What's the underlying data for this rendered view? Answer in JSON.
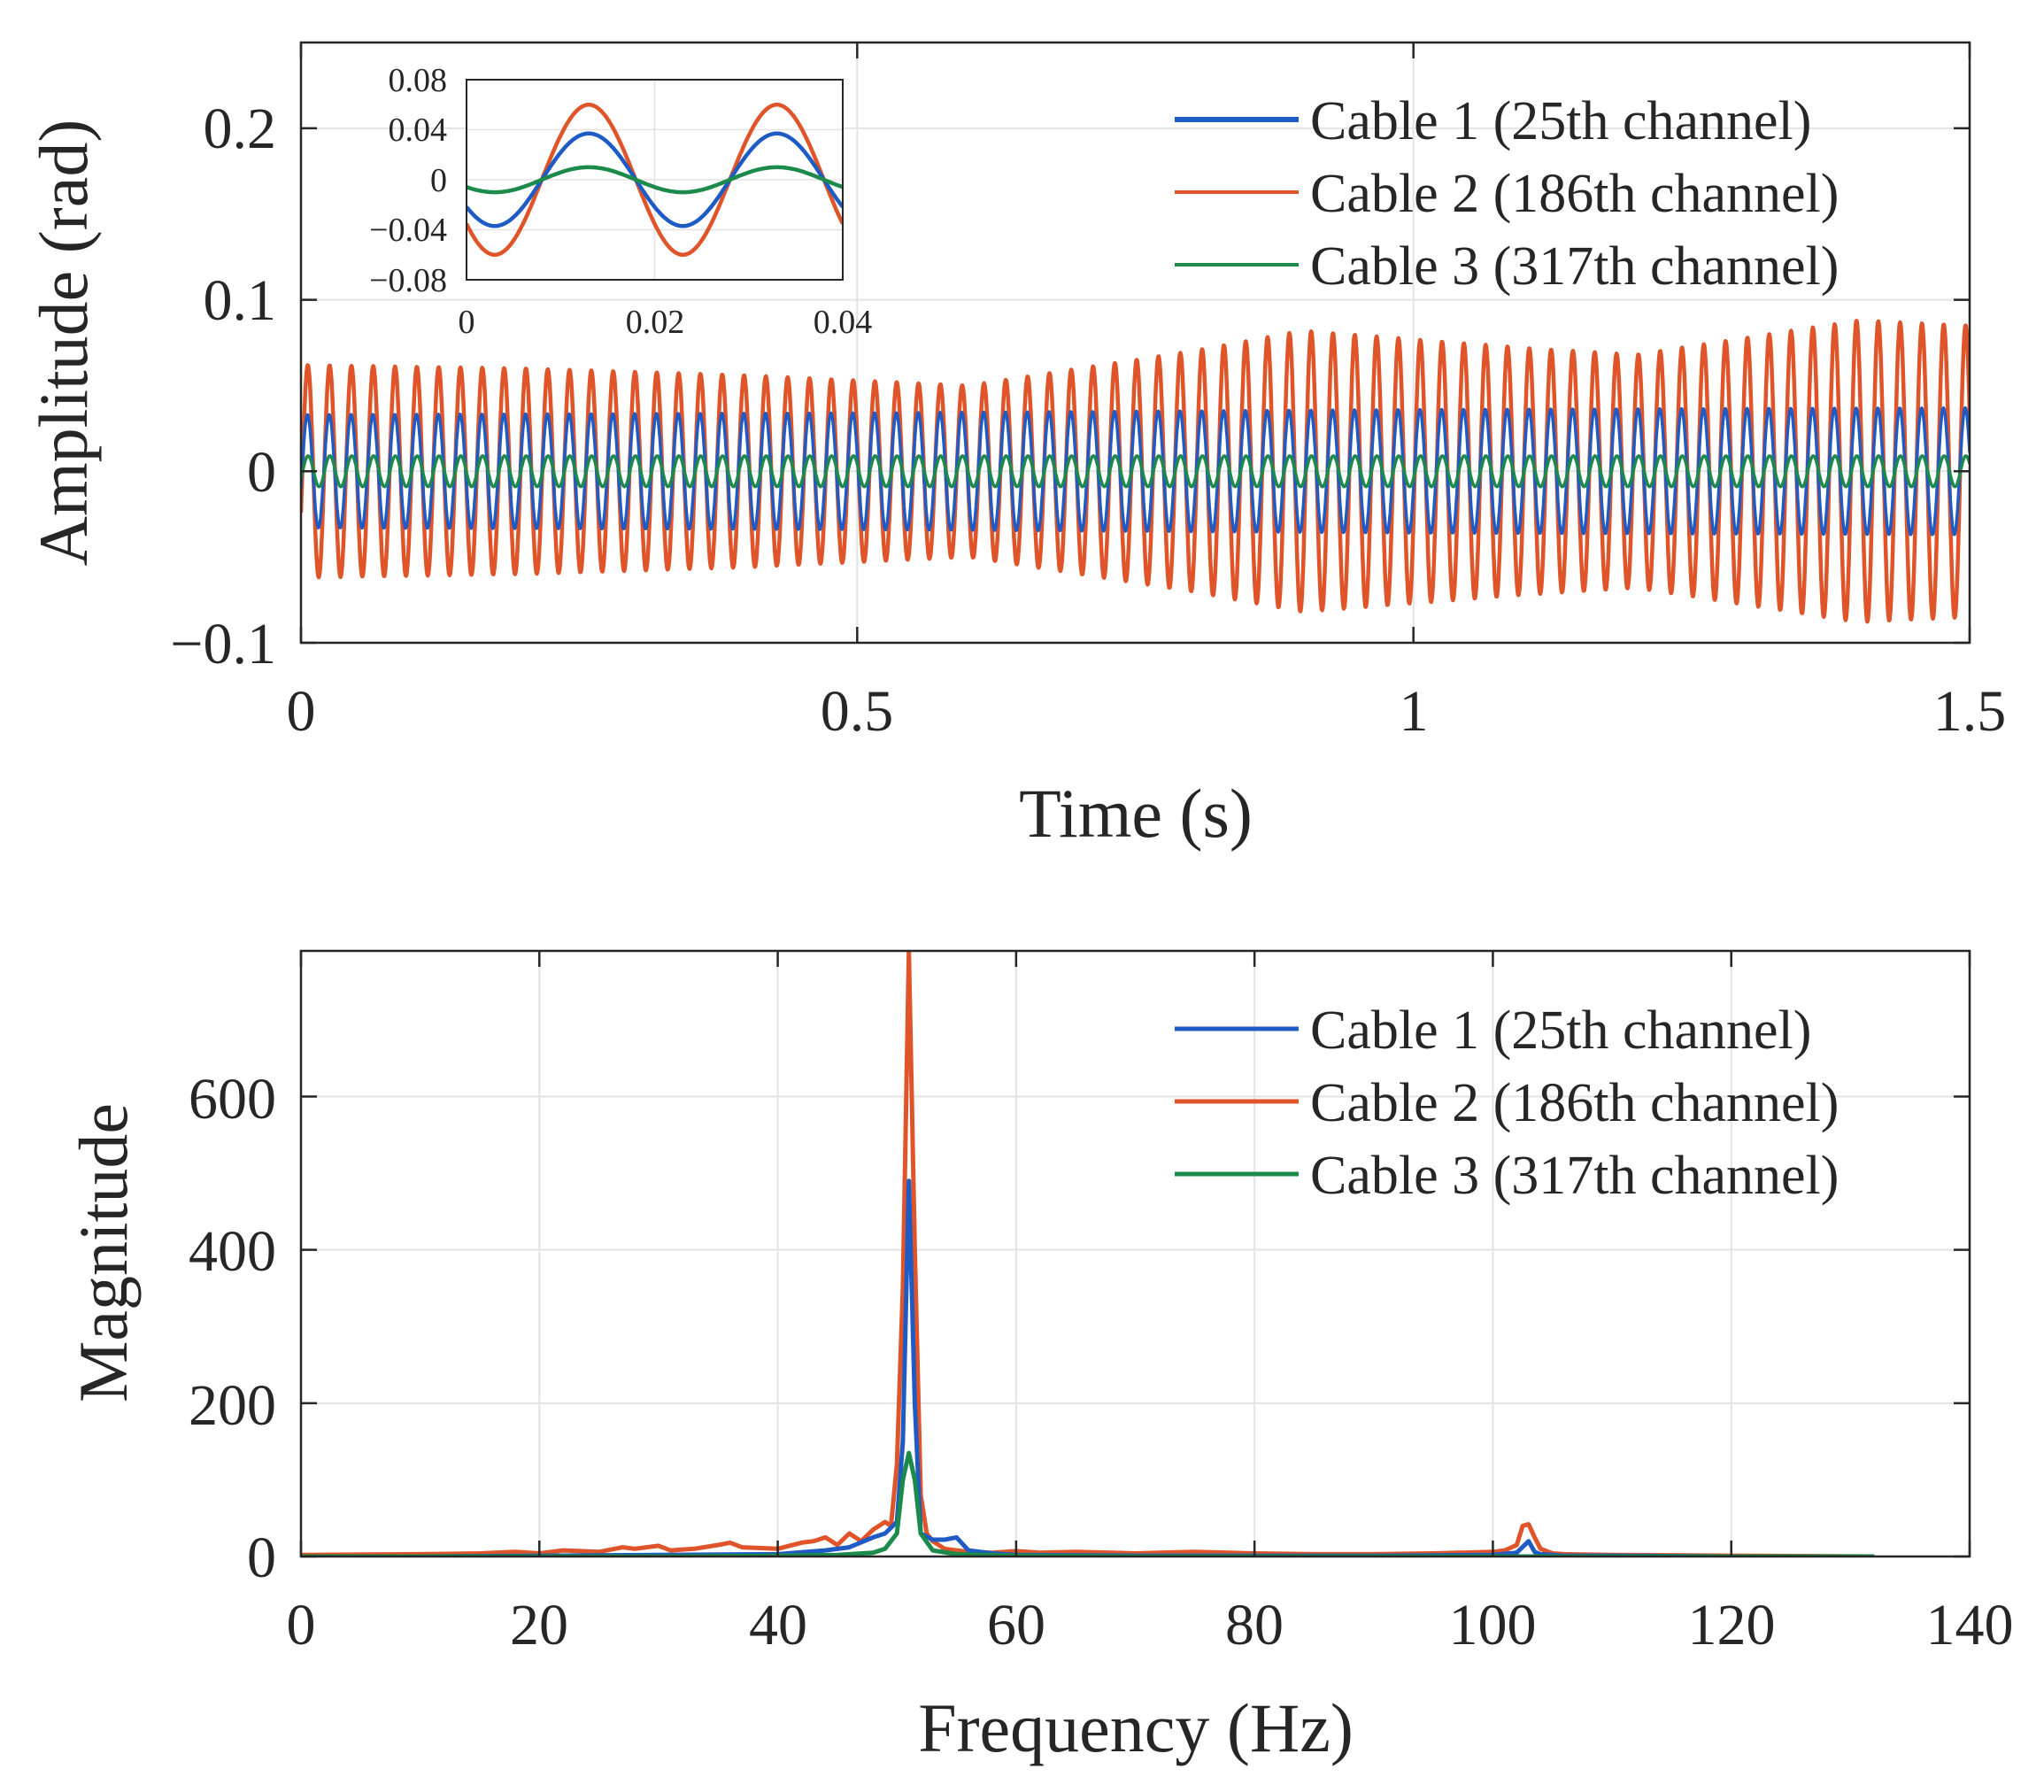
{
  "chart_data": [
    {
      "type": "line",
      "xlabel": "Time (s)",
      "ylabel": "Amplitude (rad)",
      "xlim": [
        0,
        1.5
      ],
      "ylim": [
        -0.1,
        0.25
      ],
      "xticks": [
        0,
        0.5,
        1,
        1.5
      ],
      "xtick_labels": [
        "0",
        "0.5",
        "1",
        "1.5"
      ],
      "yticks": [
        -0.1,
        0,
        0.1,
        0.2
      ],
      "ytick_labels": [
        "−0.1",
        "0",
        "0.1",
        "0.2"
      ],
      "grid": true,
      "legend_position": "top-right",
      "signal_frequency_hz": 51,
      "series": [
        {
          "name": "Cable 1 (25th channel)",
          "color": "#1f5bc4",
          "amplitude": 0.035,
          "phase": -0.3,
          "envelope": [
            [
              0,
              0.033
            ],
            [
              0.5,
              0.034
            ],
            [
              1.0,
              0.036
            ],
            [
              1.5,
              0.037
            ]
          ]
        },
        {
          "name": "Cable 2 (186th channel)",
          "color": "#e0542a",
          "amplitude": 0.06,
          "phase": -0.4,
          "envelope": [
            [
              0,
              0.062
            ],
            [
              0.2,
              0.06
            ],
            [
              0.4,
              0.056
            ],
            [
              0.6,
              0.05
            ],
            [
              0.8,
              0.07
            ],
            [
              0.9,
              0.082
            ],
            [
              1.1,
              0.072
            ],
            [
              1.2,
              0.068
            ],
            [
              1.4,
              0.088
            ],
            [
              1.5,
              0.085
            ]
          ]
        },
        {
          "name": "Cable 3 (317th channel)",
          "color": "#1b8a4a",
          "amplitude": 0.009,
          "phase": -0.5,
          "envelope": [
            [
              0,
              0.009
            ],
            [
              1.5,
              0.009
            ]
          ]
        }
      ],
      "inset": {
        "xlim": [
          0,
          0.04
        ],
        "ylim": [
          -0.08,
          0.08
        ],
        "xticks": [
          0,
          0.02,
          0.04
        ],
        "xtick_labels": [
          "0",
          "0.02",
          "0.04"
        ],
        "yticks": [
          0.08,
          0.04,
          0,
          -0.04,
          -0.08
        ],
        "ytick_labels": [
          "0.08",
          "0.04",
          "0",
          "−0.04",
          "−0.08"
        ],
        "period_s": 0.02,
        "series": [
          {
            "name": "Cable 1 (25th channel)",
            "amplitude": 0.037,
            "peak_time_s": 0.013
          },
          {
            "name": "Cable 2 (186th channel)",
            "amplitude": 0.06,
            "peak_time_s": 0.013
          },
          {
            "name": "Cable 3 (317th channel)",
            "amplitude": 0.01,
            "peak_time_s": 0.013
          }
        ]
      }
    },
    {
      "type": "line",
      "xlabel": "Frequency (Hz)",
      "ylabel": "Magnitude",
      "xlim": [
        0,
        140
      ],
      "ylim": [
        0,
        790
      ],
      "xticks": [
        0,
        20,
        40,
        60,
        80,
        100,
        120,
        140
      ],
      "xtick_labels": [
        "0",
        "20",
        "40",
        "60",
        "80",
        "100",
        "120",
        "140"
      ],
      "yticks": [
        0,
        200,
        400,
        600
      ],
      "ytick_labels": [
        "0",
        "200",
        "400",
        "600"
      ],
      "grid": true,
      "legend_position": "top-right",
      "series": [
        {
          "name": "Cable 1 (25th channel)",
          "color": "#1f5bc4",
          "x": [
            0,
            10,
            20,
            30,
            40,
            44,
            46,
            48,
            49,
            50,
            50.5,
            51,
            51.5,
            52,
            53,
            54,
            55,
            56,
            58,
            60,
            70,
            80,
            90,
            100,
            102,
            103,
            103.5,
            104,
            106,
            110,
            120,
            132
          ],
          "y": [
            0,
            0,
            1,
            2,
            3,
            8,
            12,
            25,
            30,
            45,
            150,
            490,
            200,
            30,
            22,
            22,
            25,
            8,
            4,
            2,
            1,
            1,
            1,
            2,
            5,
            20,
            6,
            3,
            1,
            1,
            0,
            0
          ]
        },
        {
          "name": "Cable 2 (186th channel)",
          "color": "#e0542a",
          "x": [
            0,
            10,
            15,
            18,
            20,
            22,
            25,
            27,
            28,
            30,
            31,
            33,
            35,
            36,
            37,
            40,
            42,
            43,
            44,
            45,
            46,
            47,
            48,
            49,
            49.5,
            50,
            50.5,
            51,
            51.5,
            52,
            52.5,
            53,
            54,
            56,
            58,
            60,
            62,
            65,
            68,
            70,
            72,
            75,
            80,
            85,
            90,
            95,
            100,
            101,
            102,
            102.5,
            103,
            103.5,
            104,
            105,
            106,
            110,
            120,
            132
          ],
          "y": [
            2,
            3,
            4,
            6,
            4,
            8,
            6,
            12,
            10,
            14,
            8,
            10,
            15,
            18,
            12,
            10,
            18,
            20,
            25,
            15,
            30,
            20,
            35,
            45,
            40,
            120,
            350,
            790,
            400,
            80,
            30,
            20,
            10,
            6,
            5,
            7,
            5,
            6,
            5,
            4,
            5,
            6,
            4,
            3,
            3,
            4,
            6,
            8,
            15,
            40,
            42,
            25,
            10,
            4,
            3,
            2,
            1,
            0
          ]
        },
        {
          "name": "Cable 3 (317th channel)",
          "color": "#1b8a4a",
          "x": [
            0,
            10,
            20,
            30,
            40,
            45,
            48,
            49,
            50,
            50.5,
            51,
            51.5,
            52,
            53,
            55,
            60,
            70,
            80,
            90,
            100,
            110,
            120,
            132
          ],
          "y": [
            0,
            0,
            0,
            0,
            1,
            2,
            5,
            10,
            30,
            100,
            135,
            100,
            30,
            8,
            3,
            1,
            0,
            0,
            0,
            0,
            0,
            0,
            0
          ]
        }
      ]
    }
  ],
  "accent_colors": {
    "grid": "#e3e3e3",
    "axes": "#262626"
  }
}
